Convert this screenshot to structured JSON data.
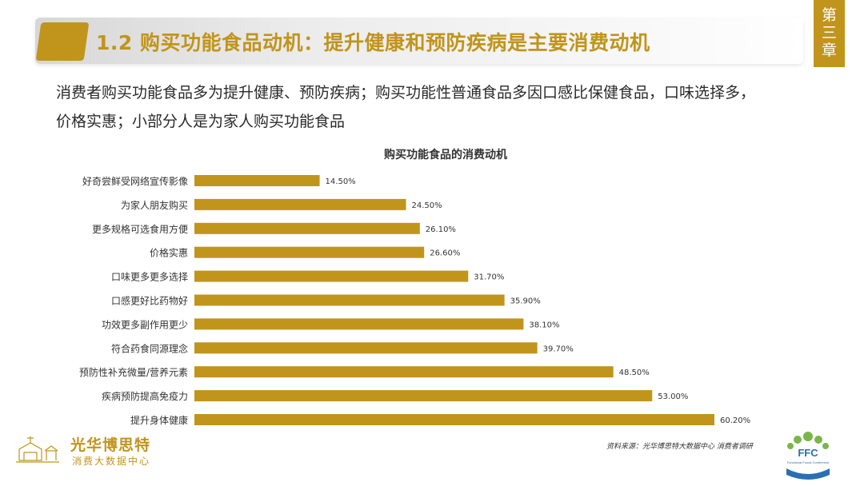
{
  "header": {
    "title": "1.2 购买功能食品动机：提升健康和预防疾病是主要消费动机",
    "chapter_tab": [
      "第",
      "三",
      "章"
    ]
  },
  "subtitle": {
    "line1": "消费者购买功能食品多为提升健康、预防疾病；购买功能性普通食品多因口感比保健食品，口味选择多，",
    "line2": "价格实惠；小部分人是为家人购买功能食品"
  },
  "chart_data": {
    "type": "bar",
    "orientation": "horizontal",
    "title": "购买功能食品的消费动机",
    "categories": [
      "好奇尝鲜受网络宣传影像",
      "为家人朋友购买",
      "更多规格可选食用方便",
      "价格实惠",
      "口味更多更多选择",
      "口感更好比药物好",
      "功效更多副作用更少",
      "符合药食同源理念",
      "预防性补充微量/营养元素",
      "疾病预防提高免疫力",
      "提升身体健康"
    ],
    "values": [
      14.5,
      24.5,
      26.1,
      26.6,
      31.7,
      35.9,
      38.1,
      39.7,
      48.5,
      53.0,
      60.2
    ],
    "value_labels": [
      "14.50%",
      "24.50%",
      "26.10%",
      "26.60%",
      "31.70%",
      "35.90%",
      "38.10%",
      "39.70%",
      "48.50%",
      "53.00%",
      "60.20%"
    ],
    "xlim": [
      0,
      60.2
    ],
    "grid": false,
    "legend": "none",
    "bar_color": "#c1941b"
  },
  "footer": {
    "logo_name": "光华博思特",
    "logo_sub": "消费大数据中心",
    "source": "资料来源：光华博思特大数据中心 消费者调研",
    "ffc_logo_text": "FFC",
    "ffc_logo_sub": "Functional Foods Conference"
  },
  "colors": {
    "accent": "#c1941b",
    "text": "#2b2b2b"
  }
}
